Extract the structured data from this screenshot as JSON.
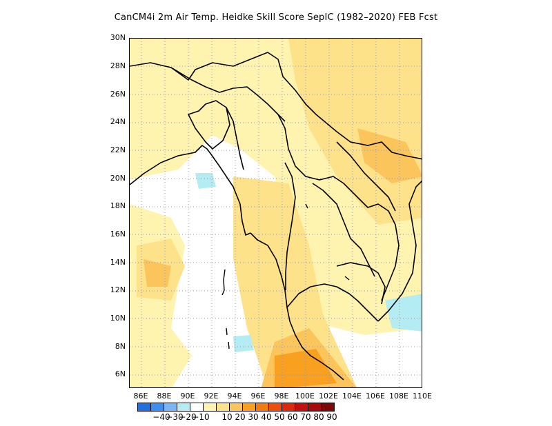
{
  "title": "CanCM4i  2m Air Temp. Heidke Skill Score SepIC (1982–2020) FEB Fcst",
  "map": {
    "lat_ticks": [
      "30N",
      "28N",
      "26N",
      "24N",
      "22N",
      "20N",
      "18N",
      "16N",
      "14N",
      "12N",
      "10N",
      "8N",
      "6N"
    ],
    "lon_ticks": [
      "86E",
      "88E",
      "90E",
      "92E",
      "94E",
      "96E",
      "98E",
      "100E",
      "102E",
      "104E",
      "106E",
      "108E",
      "110E"
    ],
    "extent": {
      "lon_min": 85,
      "lon_max": 110,
      "lat_min": 5,
      "lat_max": 30
    },
    "grid": "dotted"
  },
  "colorbar": {
    "colors": [
      "#1e6fe0",
      "#3c8ef0",
      "#7ab6f5",
      "#b3ecf3",
      "#ffffff",
      "#fff3b0",
      "#fde28a",
      "#fbc55c",
      "#f9a020",
      "#f57a0c",
      "#ee4e0c",
      "#e0260c",
      "#c50f0f",
      "#a60a0a",
      "#7d0707"
    ],
    "labels": [
      "−40",
      "−30",
      "−20",
      "−10",
      "10",
      "20",
      "30",
      "40",
      "50",
      "60",
      "70",
      "80",
      "90"
    ]
  }
}
